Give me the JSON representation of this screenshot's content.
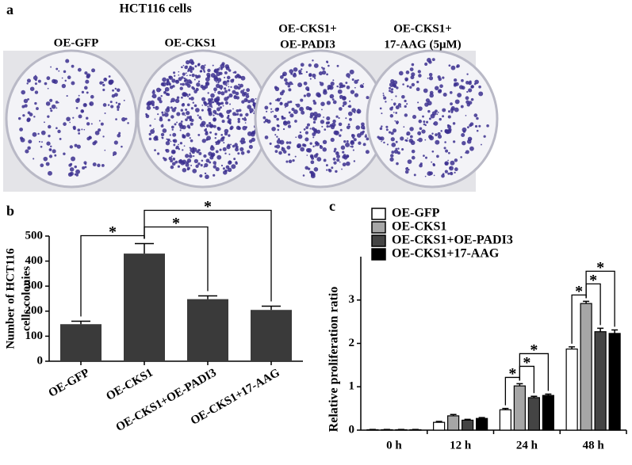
{
  "figure": {
    "panel_labels": [
      "a",
      "b",
      "c"
    ],
    "photo": {
      "title": "HCT116 cells",
      "labels": [
        [
          "OE-GFP"
        ],
        [
          "OE-CKS1"
        ],
        [
          "OE-CKS1+",
          "OE-PADI3"
        ],
        [
          "OE-CKS1+",
          "17-AAG (5μM)"
        ]
      ]
    }
  },
  "chart_data": [
    {
      "type": "bar",
      "ylabel": [
        "Number of HCT116",
        "cells colonies"
      ],
      "categories": [
        "OE-GFP",
        "OE-CKS1",
        "OE-CKS1+OE-PADI3",
        "OE-CKS1+17-AAG"
      ],
      "values": [
        148,
        430,
        248,
        205
      ],
      "errors": [
        12,
        40,
        13,
        15
      ],
      "color": "#3a3a3a",
      "ylim": [
        0,
        500
      ],
      "yticks": [
        0,
        100,
        200,
        300,
        400,
        500
      ],
      "annotations": [
        {
          "from": 0,
          "to": 1,
          "label": "*"
        },
        {
          "from": 1,
          "to": 2,
          "label": "*"
        },
        {
          "from": 1,
          "to": 3,
          "label": "*"
        }
      ]
    },
    {
      "type": "grouped_bar",
      "ylabel": "Relative proliferation ratio",
      "categories": [
        "0 h",
        "12 h",
        "24 h",
        "48 h"
      ],
      "series": [
        {
          "name": "OE-GFP",
          "color": "#ffffff",
          "values": [
            0.01,
            0.18,
            0.47,
            1.87
          ],
          "errors": [
            0.005,
            0.02,
            0.03,
            0.05
          ]
        },
        {
          "name": "OE-CKS1",
          "color": "#a6a6a6",
          "values": [
            0.01,
            0.33,
            1.02,
            2.92
          ],
          "errors": [
            0.005,
            0.03,
            0.05,
            0.05
          ]
        },
        {
          "name": "OE-CKS1+OE-PADI3",
          "color": "#444444",
          "values": [
            0.01,
            0.23,
            0.75,
            2.27
          ],
          "errors": [
            0.005,
            0.02,
            0.03,
            0.08
          ]
        },
        {
          "name": "OE-CKS1+17-AAG",
          "color": "#000000",
          "values": [
            0.01,
            0.27,
            0.8,
            2.23
          ],
          "errors": [
            0.005,
            0.02,
            0.03,
            0.08
          ]
        }
      ],
      "ylim": [
        0,
        4
      ],
      "yticks": [
        0,
        1,
        2,
        3
      ],
      "legend": "upper left",
      "annotations": [
        {
          "category": 2,
          "from": 0,
          "to": 1,
          "label": "*"
        },
        {
          "category": 2,
          "from": 1,
          "to": 2,
          "label": "*"
        },
        {
          "category": 2,
          "from": 1,
          "to": 3,
          "label": "*"
        },
        {
          "category": 3,
          "from": 0,
          "to": 1,
          "label": "*"
        },
        {
          "category": 3,
          "from": 1,
          "to": 2,
          "label": "*"
        },
        {
          "category": 3,
          "from": 1,
          "to": 3,
          "label": "*"
        }
      ]
    }
  ]
}
